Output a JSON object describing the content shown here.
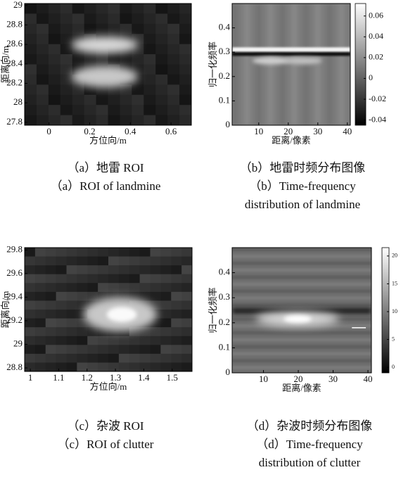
{
  "chart_data": [
    {
      "type": "heatmap",
      "xlabel": "方位向/m",
      "ylabel": "距离向/m",
      "xlim": [
        -0.12,
        0.7
      ],
      "ylim": [
        27.77,
        29.02
      ],
      "xticks": [
        0,
        0.2,
        0.4,
        0.6
      ],
      "yticks": [
        27.8,
        28,
        28.2,
        28.4,
        28.6,
        28.8,
        29
      ],
      "caption": [
        "（a）地雷 ROI",
        "（a）ROI of landmine"
      ]
    },
    {
      "type": "heatmap",
      "xlabel": "距离/像素",
      "ylabel": "归一化频率",
      "xlim": [
        1,
        41
      ],
      "ylim": [
        0,
        0.5
      ],
      "xticks": [
        10,
        20,
        30,
        40
      ],
      "yticks": [
        0,
        0.1,
        0.2,
        0.3,
        0.4
      ],
      "clim": [
        -0.045,
        0.072
      ],
      "cticks": [
        -0.04,
        -0.02,
        0,
        0.02,
        0.04,
        0.06
      ],
      "caption": [
        "（b）地雷时频分布图像",
        "（b）Time-frequency",
        "distribution of landmine"
      ]
    },
    {
      "type": "heatmap",
      "xlabel": "方位向/m",
      "ylabel": "距离向/m",
      "xlim": [
        0.98,
        1.57
      ],
      "ylim": [
        28.77,
        29.82
      ],
      "xticks": [
        1,
        1.1,
        1.2,
        1.3,
        1.4,
        1.5
      ],
      "yticks": [
        28.8,
        29,
        29.2,
        29.4,
        29.6,
        29.8
      ],
      "caption": [
        "（c）杂波 ROI",
        "（c）ROI of clutter"
      ]
    },
    {
      "type": "heatmap",
      "xlabel": "距离/像素",
      "ylabel": "归一化频率",
      "xlim": [
        1,
        41
      ],
      "ylim": [
        0,
        0.5
      ],
      "xticks": [
        10,
        20,
        30,
        40
      ],
      "yticks": [
        0,
        0.1,
        0.2,
        0.3,
        0.4
      ],
      "clim": [
        -1,
        21.5
      ],
      "cticks": [
        0,
        5,
        10,
        15,
        20
      ],
      "caption": [
        "（d）杂波时频分布图像",
        "（d）Time-frequency",
        "distribution of clutter"
      ]
    }
  ]
}
